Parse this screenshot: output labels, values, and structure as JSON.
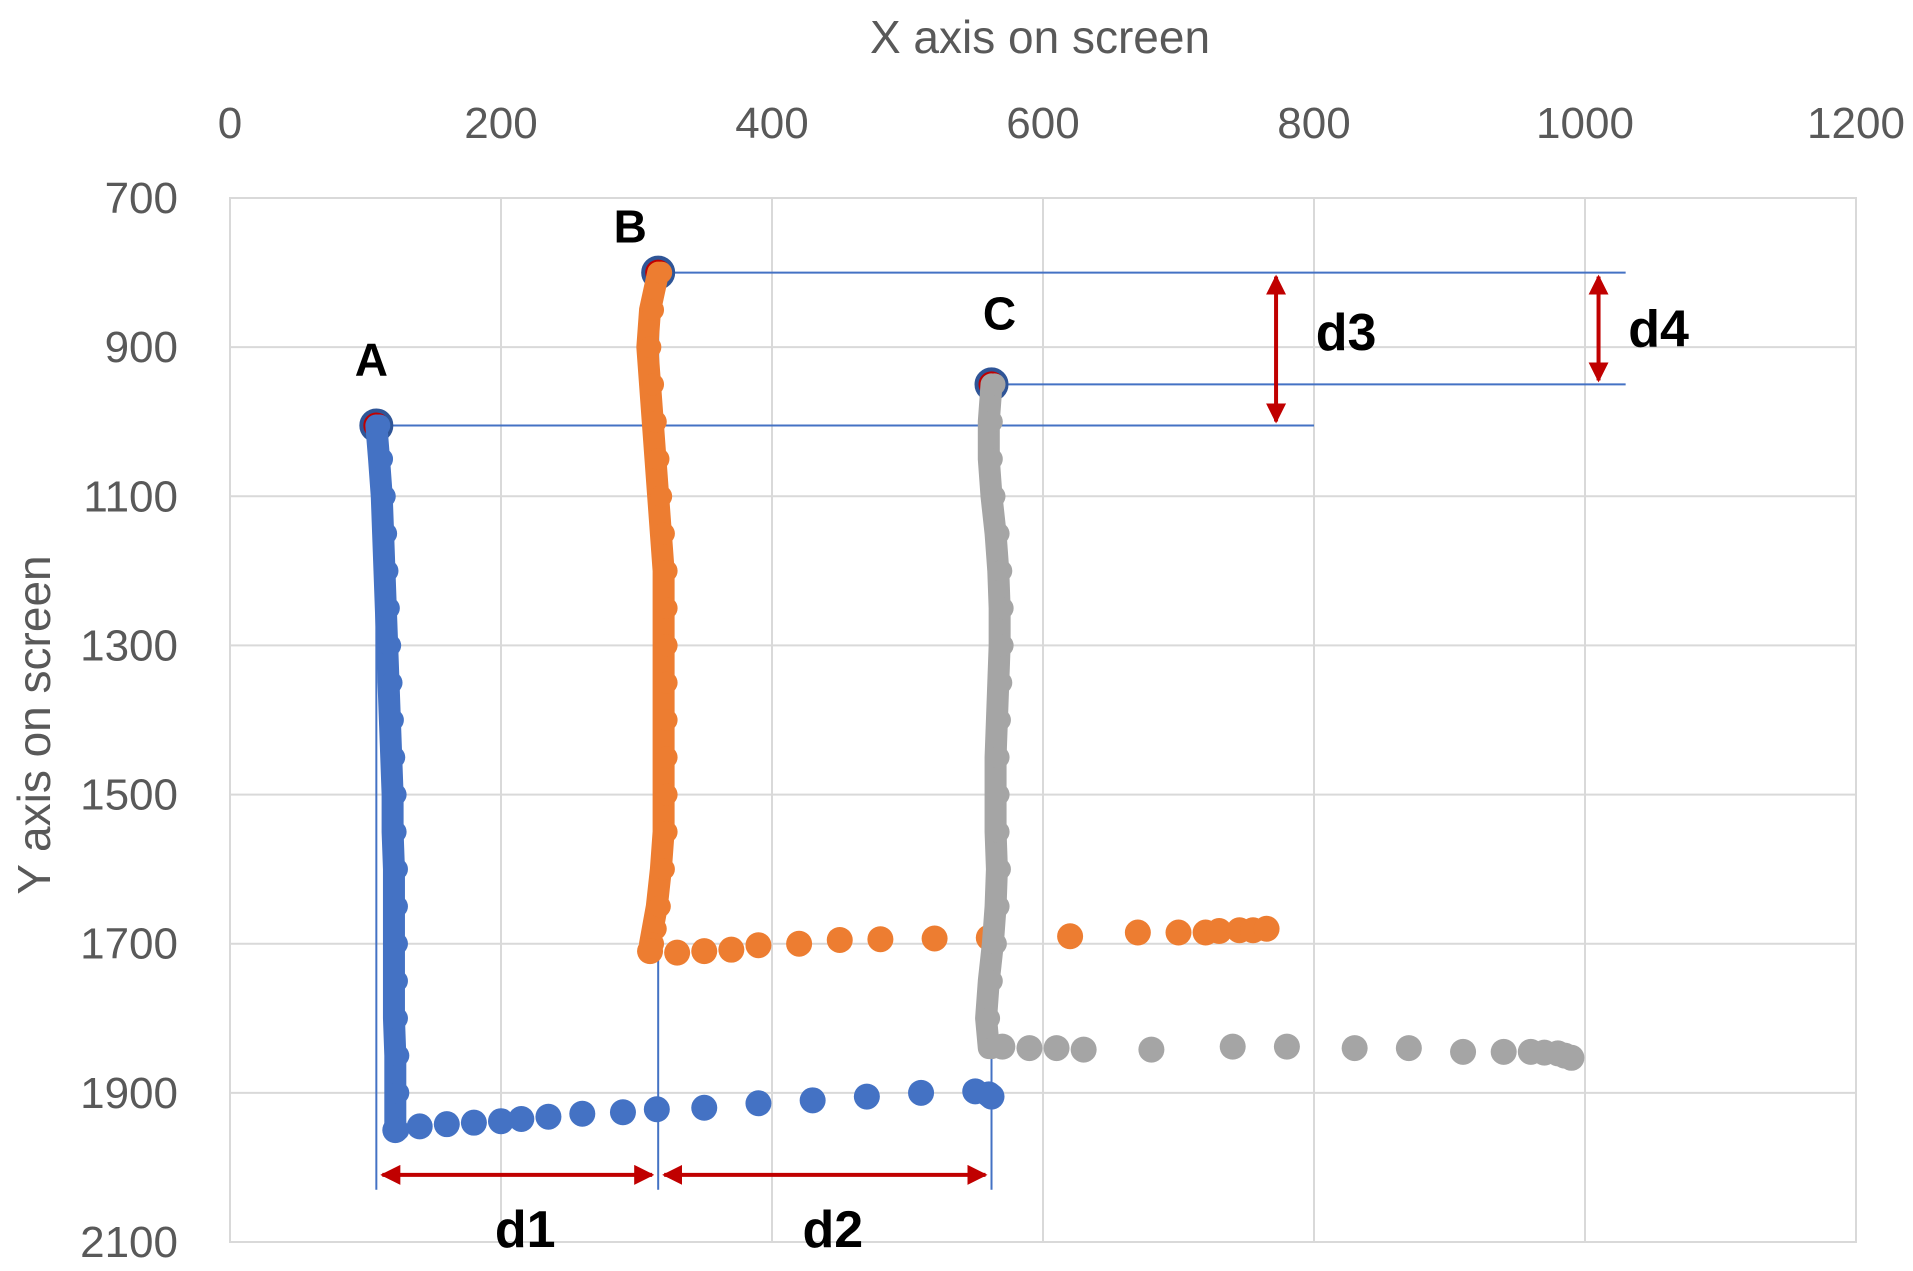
{
  "chart_data": {
    "type": "scatter",
    "title": "",
    "xlabel": "X axis on screen",
    "ylabel": "Y axis on screen",
    "xlim": [
      0,
      1200
    ],
    "ylim": [
      700,
      2100
    ],
    "y_reversed": true,
    "x_axis_position": "top",
    "x_ticks": [
      "0",
      "200",
      "400",
      "600",
      "800",
      "1000",
      "1200"
    ],
    "y_ticks": [
      "700",
      "900",
      "1100",
      "1300",
      "1500",
      "1700",
      "1900",
      "2100"
    ],
    "grid": true,
    "legend": "none",
    "series": [
      {
        "color": "#4472C4",
        "vertical": {
          "points": [
            [
              108,
              1005
            ],
            [
              110,
              1050
            ],
            [
              112,
              1100
            ],
            [
              113,
              1150
            ],
            [
              114,
              1200
            ],
            [
              115,
              1250
            ],
            [
              116,
              1300
            ],
            [
              117,
              1350
            ],
            [
              118,
              1400
            ],
            [
              119,
              1450
            ],
            [
              120,
              1500
            ],
            [
              120,
              1550
            ],
            [
              121,
              1600
            ],
            [
              121,
              1650
            ],
            [
              121,
              1700
            ],
            [
              121,
              1750
            ],
            [
              121,
              1800
            ],
            [
              122,
              1850
            ],
            [
              122,
              1900
            ],
            [
              122,
              1950
            ]
          ]
        },
        "horizontal": {
          "points": [
            [
              122,
              1950
            ],
            [
              140,
              1945
            ],
            [
              160,
              1942
            ],
            [
              180,
              1940
            ],
            [
              200,
              1938
            ],
            [
              215,
              1935
            ],
            [
              235,
              1932
            ],
            [
              260,
              1928
            ],
            [
              290,
              1926
            ],
            [
              315,
              1922
            ],
            [
              350,
              1920
            ],
            [
              390,
              1914
            ],
            [
              430,
              1910
            ],
            [
              470,
              1905
            ],
            [
              510,
              1900
            ],
            [
              550,
              1898
            ],
            [
              560,
              1902
            ],
            [
              562,
              1905
            ]
          ]
        }
      },
      {
        "color": "#ED7D31",
        "vertical": {
          "points": [
            [
              316,
              800
            ],
            [
              310,
              850
            ],
            [
              308,
              900
            ],
            [
              310,
              950
            ],
            [
              312,
              1000
            ],
            [
              314,
              1050
            ],
            [
              316,
              1100
            ],
            [
              318,
              1150
            ],
            [
              320,
              1200
            ],
            [
              320,
              1250
            ],
            [
              320,
              1300
            ],
            [
              320,
              1350
            ],
            [
              320,
              1400
            ],
            [
              320,
              1450
            ],
            [
              320,
              1500
            ],
            [
              320,
              1550
            ],
            [
              318,
              1600
            ],
            [
              315,
              1650
            ],
            [
              312,
              1680
            ],
            [
              310,
              1700
            ]
          ]
        },
        "horizontal": {
          "points": [
            [
              310,
              1710
            ],
            [
              330,
              1712
            ],
            [
              350,
              1710
            ],
            [
              370,
              1708
            ],
            [
              390,
              1702
            ],
            [
              420,
              1700
            ],
            [
              450,
              1695
            ],
            [
              480,
              1694
            ],
            [
              520,
              1693
            ],
            [
              560,
              1692
            ],
            [
              620,
              1690
            ],
            [
              670,
              1685
            ],
            [
              700,
              1685
            ],
            [
              720,
              1685
            ],
            [
              730,
              1683
            ],
            [
              745,
              1682
            ],
            [
              755,
              1682
            ],
            [
              765,
              1680
            ]
          ]
        }
      },
      {
        "color": "#A5A5A5",
        "vertical": {
          "points": [
            [
              562,
              950
            ],
            [
              560,
              1000
            ],
            [
              560,
              1050
            ],
            [
              562,
              1100
            ],
            [
              565,
              1150
            ],
            [
              567,
              1200
            ],
            [
              568,
              1250
            ],
            [
              568,
              1300
            ],
            [
              567,
              1350
            ],
            [
              566,
              1400
            ],
            [
              565,
              1450
            ],
            [
              565,
              1500
            ],
            [
              565,
              1550
            ],
            [
              566,
              1600
            ],
            [
              565,
              1650
            ],
            [
              563,
              1700
            ],
            [
              560,
              1750
            ],
            [
              558,
              1800
            ],
            [
              560,
              1840
            ]
          ]
        },
        "horizontal": {
          "points": [
            [
              570,
              1838
            ],
            [
              590,
              1840
            ],
            [
              610,
              1840
            ],
            [
              630,
              1842
            ],
            [
              680,
              1842
            ],
            [
              740,
              1838
            ],
            [
              780,
              1838
            ],
            [
              830,
              1840
            ],
            [
              870,
              1840
            ],
            [
              910,
              1845
            ],
            [
              940,
              1845
            ],
            [
              960,
              1845
            ],
            [
              970,
              1846
            ],
            [
              980,
              1847
            ],
            [
              985,
              1850
            ],
            [
              990,
              1853
            ]
          ]
        }
      }
    ],
    "annotations": [
      {
        "label": "A",
        "x": 108,
        "y": 1005
      },
      {
        "label": "B",
        "x": 316,
        "y": 800
      },
      {
        "label": "C",
        "x": 562,
        "y": 950
      },
      {
        "label": "d1",
        "from_x": 108,
        "to_x": 316
      },
      {
        "label": "d2",
        "from_x": 316,
        "to_x": 562
      },
      {
        "label": "d3",
        "from_y": 800,
        "to_y": 1005
      },
      {
        "label": "d4",
        "from_y": 800,
        "to_y": 950
      }
    ]
  }
}
